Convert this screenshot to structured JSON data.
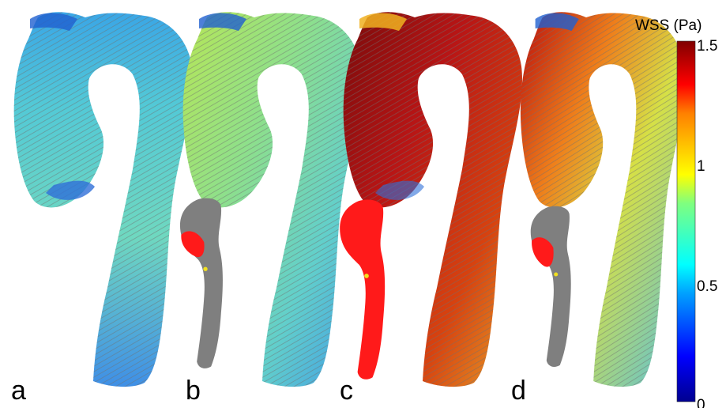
{
  "panels": [
    {
      "letter": "a",
      "id": "a"
    },
    {
      "letter": "b",
      "id": "b"
    },
    {
      "letter": "c",
      "id": "c"
    },
    {
      "letter": "d",
      "id": "d"
    }
  ],
  "colorbar": {
    "title": "WSS (Pa)",
    "ticks": [
      "1.5",
      "1",
      "0.5",
      "0"
    ],
    "range": [
      0,
      1.5
    ],
    "colormap": "jet",
    "stops": [
      "#00008f",
      "#0000ff",
      "#00a0ff",
      "#00ffff",
      "#7fff7f",
      "#ffff00",
      "#ff8000",
      "#ff0000",
      "#800000"
    ]
  },
  "colors": {
    "vessel_gray": "#7f7f7f",
    "mask_red": "#ff1a1a",
    "mask_yellow": "#f2e01f",
    "panel_a": [
      "#3fb9e8",
      "#5fd6c9",
      "#4ab0e0"
    ],
    "panel_b": [
      "#9fe07a",
      "#6fd6c0",
      "#4fc6df"
    ],
    "panel_c": [
      "#8b0d0d",
      "#c01818",
      "#e35a10"
    ],
    "panel_d": [
      "#c61515",
      "#e8c23a",
      "#6fd3bb"
    ]
  }
}
